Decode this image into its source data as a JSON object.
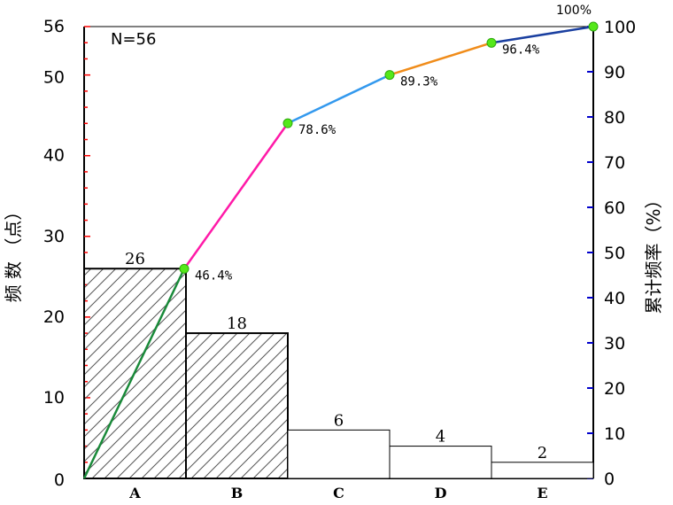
{
  "chart_data": {
    "type": "bar",
    "annotation": "N=56",
    "categories": [
      "A",
      "B",
      "C",
      "D",
      "E"
    ],
    "values": [
      26,
      18,
      6,
      4,
      2
    ],
    "cumulative_percent": [
      46.4,
      78.6,
      89.3,
      96.4,
      100
    ],
    "cumulative_labels": [
      "46.4%",
      "78.6%",
      "89.3%",
      "96.4%",
      "100%"
    ],
    "ylabel_left": "频 数 （点）",
    "ylabel_right": "累计频率（%）",
    "ylim_left": [
      0,
      56
    ],
    "yticks_left": [
      0,
      10,
      20,
      30,
      40,
      50,
      56
    ],
    "ylim_right": [
      0,
      100
    ],
    "yticks_right": [
      0,
      10,
      20,
      30,
      40,
      50,
      60,
      70,
      80,
      90,
      100
    ],
    "hatched_categories": [
      "A",
      "B"
    ],
    "segment_colors": [
      "#1a8a3a",
      "#ff1aa8",
      "#3399ee",
      "#f08c1a",
      "#1a3fa0"
    ],
    "point_color": "#55e81a",
    "tick_color_left": "#ff0000",
    "tick_color_right": "#0000cc"
  }
}
